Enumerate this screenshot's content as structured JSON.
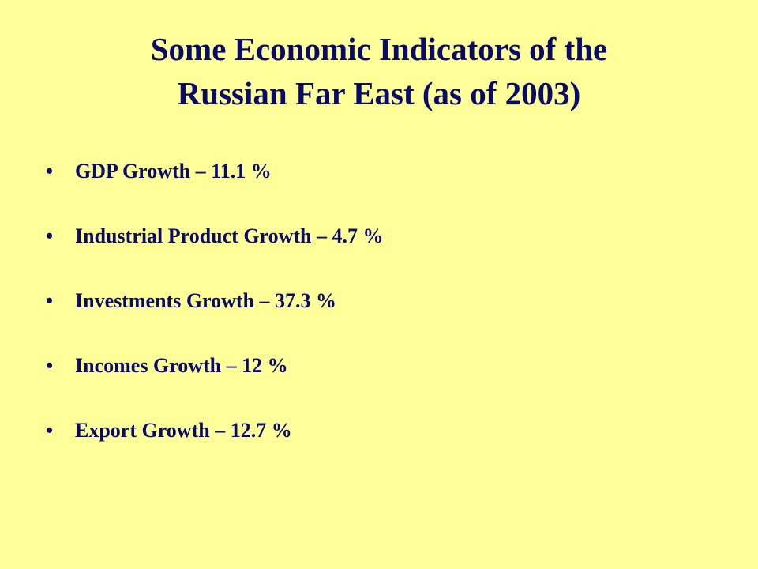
{
  "slide": {
    "title_line1": "Some Economic Indicators of the",
    "title_line2": "Russian Far East (as of 2003)",
    "bullet_symbol": "•",
    "items": [
      {
        "text": "GDP Growth – 11.1 %"
      },
      {
        "text": "Industrial Product Growth – 4.7 %"
      },
      {
        "text": "Investments Growth – 37.3 %"
      },
      {
        "text": "Incomes Growth – 12 %"
      },
      {
        "text": "Export Growth – 12.7 %"
      }
    ]
  },
  "colors": {
    "background": "#FFFF99",
    "text": "#0A0A6B"
  }
}
